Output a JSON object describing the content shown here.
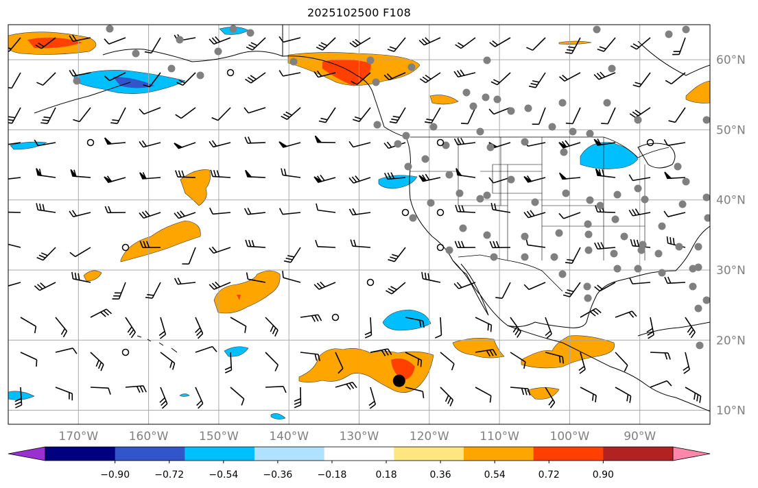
{
  "title": "2025102500 F108",
  "map": {
    "lon_range": [
      -180,
      -80
    ],
    "lat_range": [
      8,
      65
    ],
    "lon_ticks": [
      "170°W",
      "160°W",
      "150°W",
      "140°W",
      "130°W",
      "120°W",
      "110°W",
      "100°W",
      "90°W"
    ],
    "lat_ticks": [
      "60°N",
      "50°N",
      "40°N",
      "30°N",
      "20°N",
      "10°N"
    ],
    "grid": true,
    "label_color": "#808080",
    "marker": {
      "lon": -124.3,
      "lat": 14.2,
      "color": "#000000"
    }
  },
  "colorbar": {
    "ticks": [
      "−0.90",
      "−0.72",
      "−0.54",
      "−0.36",
      "−0.18",
      "0.18",
      "0.36",
      "0.54",
      "0.72",
      "0.90"
    ],
    "colors": [
      "#9b30d0",
      "#000080",
      "#3355cc",
      "#00bfff",
      "#b0e2ff",
      "#ffffff",
      "#ffe680",
      "#ffa500",
      "#ff4000",
      "#b22222",
      "#ff88aa"
    ],
    "extend": "both"
  }
}
